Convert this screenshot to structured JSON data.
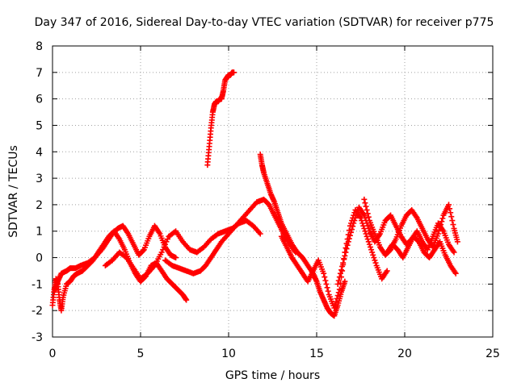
{
  "chart_data": {
    "type": "scatter",
    "title": "Day 347 of 2016, Sidereal Day-to-day VTEC variation (SDTVAR) for receiver p775",
    "xlabel": "GPS time / hours",
    "ylabel": "SDTVAR / TECUs",
    "xlim": [
      0,
      25
    ],
    "ylim": [
      -3,
      8
    ],
    "xticks": [
      0,
      5,
      10,
      15,
      20,
      25
    ],
    "yticks": [
      -3,
      -2,
      -1,
      0,
      1,
      2,
      3,
      4,
      5,
      6,
      7,
      8
    ],
    "grid": true,
    "marker": "+",
    "series": [
      {
        "name": "SDTVAR",
        "color": "#ff0000",
        "tracks": [
          {
            "x": [
              0.0,
              0.1,
              0.2,
              0.3,
              0.4,
              0.5,
              0.6,
              0.8,
              1.0,
              1.2,
              1.4,
              1.7,
              2.0,
              2.3,
              2.6,
              2.9,
              3.2,
              3.5,
              3.8,
              4.1,
              4.4,
              4.7,
              5.0,
              5.3,
              5.6,
              5.9,
              6.2,
              6.5,
              6.8,
              7.1,
              7.4,
              7.6
            ],
            "y": [
              -1.8,
              -1.2,
              -0.8,
              -1.0,
              -1.6,
              -2.0,
              -1.5,
              -1.0,
              -0.9,
              -0.7,
              -0.6,
              -0.5,
              -0.3,
              -0.1,
              0.2,
              0.5,
              0.8,
              1.0,
              0.7,
              0.3,
              -0.2,
              -0.6,
              -0.9,
              -0.7,
              -0.3,
              -0.2,
              -0.5,
              -0.8,
              -1.0,
              -1.2,
              -1.4,
              -1.6
            ]
          },
          {
            "x": [
              0.1,
              0.3,
              0.5,
              0.8,
              1.0,
              1.3,
              1.6,
              2.0,
              2.4,
              2.8,
              3.1,
              3.4,
              3.7,
              4.0,
              4.3,
              4.6,
              4.9,
              5.2,
              5.5,
              5.8,
              6.1,
              6.4,
              6.7,
              7.0
            ],
            "y": [
              -1.3,
              -0.9,
              -0.6,
              -0.5,
              -0.4,
              -0.4,
              -0.3,
              -0.2,
              0.0,
              0.3,
              0.6,
              0.9,
              1.1,
              1.2,
              0.9,
              0.5,
              0.1,
              0.3,
              0.8,
              1.2,
              0.9,
              0.4,
              0.1,
              0.0
            ]
          },
          {
            "x": [
              3.0,
              3.4,
              3.8,
              4.2,
              4.6,
              5.0,
              5.4,
              5.8,
              6.2,
              6.6,
              7.0,
              7.4,
              7.8,
              8.2,
              8.6,
              9.0,
              9.4,
              9.8,
              10.2,
              10.6,
              11.0,
              11.4,
              11.8
            ],
            "y": [
              -0.3,
              -0.1,
              0.2,
              0.0,
              -0.4,
              -0.8,
              -0.6,
              -0.3,
              0.2,
              0.8,
              1.0,
              0.6,
              0.3,
              0.2,
              0.4,
              0.7,
              0.9,
              1.0,
              1.1,
              1.3,
              1.4,
              1.2,
              0.9
            ]
          },
          {
            "x": [
              6.4,
              6.8,
              7.2,
              7.6,
              8.0,
              8.4,
              8.7,
              9.0,
              9.3,
              9.6,
              10.0,
              10.4,
              10.8,
              11.2,
              11.6,
              12.0,
              12.3,
              12.6,
              12.9,
              13.2,
              13.5,
              13.8
            ],
            "y": [
              -0.1,
              -0.3,
              -0.4,
              -0.5,
              -0.6,
              -0.5,
              -0.3,
              0.0,
              0.3,
              0.6,
              0.9,
              1.2,
              1.5,
              1.8,
              2.1,
              2.2,
              2.0,
              1.6,
              1.2,
              0.8,
              0.5,
              0.2
            ]
          },
          {
            "x": [
              8.8,
              8.9,
              9.0,
              9.1,
              9.2,
              9.3,
              9.4,
              9.5,
              9.6,
              9.7,
              9.8,
              9.9,
              10.0,
              10.1,
              10.2,
              10.3
            ],
            "y": [
              3.5,
              4.2,
              4.9,
              5.5,
              5.8,
              5.9,
              5.9,
              6.0,
              6.0,
              6.3,
              6.7,
              6.8,
              6.9,
              6.9,
              7.0,
              7.0
            ]
          },
          {
            "x": [
              11.8,
              11.9,
              12.0,
              12.2,
              12.4,
              12.6,
              12.8,
              13.0,
              13.3,
              13.6,
              13.9,
              14.2,
              14.5,
              14.8,
              15.0,
              15.2,
              15.4,
              15.6,
              15.8,
              16.0,
              16.2,
              16.4,
              16.6
            ],
            "y": [
              3.9,
              3.5,
              3.2,
              2.8,
              2.4,
              2.1,
              1.7,
              1.3,
              0.9,
              0.5,
              0.2,
              0.0,
              -0.3,
              -0.6,
              -0.9,
              -1.3,
              -1.6,
              -1.9,
              -2.1,
              -2.2,
              -1.8,
              -1.3,
              -0.9
            ]
          },
          {
            "x": [
              13.0,
              13.3,
              13.6,
              13.9,
              14.2,
              14.5,
              14.8,
              15.1,
              15.4,
              15.7,
              16.0,
              16.3,
              16.6,
              16.9,
              17.2,
              17.5,
              17.8,
              18.1,
              18.4,
              18.7,
              19.0
            ],
            "y": [
              0.8,
              0.4,
              0.0,
              -0.3,
              -0.6,
              -0.9,
              -0.5,
              -0.1,
              -0.6,
              -1.4,
              -1.9,
              -1.2,
              0.2,
              1.2,
              1.8,
              1.5,
              0.9,
              0.3,
              -0.3,
              -0.8,
              -0.5
            ]
          },
          {
            "x": [
              16.2,
              16.5,
              16.8,
              17.1,
              17.4,
              17.7,
              18.0,
              18.3,
              18.6,
              18.9,
              19.2,
              19.5,
              19.8,
              20.1,
              20.4,
              20.7,
              21.0,
              21.3,
              21.6,
              21.9,
              22.2,
              22.5,
              22.8
            ],
            "y": [
              -1.0,
              -0.2,
              0.6,
              1.3,
              1.9,
              1.6,
              1.0,
              0.6,
              0.9,
              1.4,
              1.6,
              1.2,
              0.8,
              0.5,
              0.7,
              1.0,
              0.6,
              0.3,
              0.8,
              1.3,
              1.0,
              0.5,
              0.2
            ]
          },
          {
            "x": [
              17.7,
              18.0,
              18.3,
              18.6,
              18.9,
              19.2,
              19.5,
              19.8,
              20.1,
              20.4,
              20.7,
              21.0,
              21.3,
              21.6,
              21.9,
              22.2,
              22.5,
              22.8,
              23.0
            ],
            "y": [
              2.2,
              1.4,
              0.9,
              0.4,
              0.1,
              0.3,
              0.7,
              1.2,
              1.6,
              1.8,
              1.5,
              1.1,
              0.7,
              0.4,
              0.9,
              1.6,
              2.0,
              1.1,
              0.6
            ]
          },
          {
            "x": [
              19.0,
              19.3,
              19.6,
              19.9,
              20.2,
              20.5,
              20.8,
              21.1,
              21.4,
              21.7,
              22.0,
              22.3,
              22.6,
              22.9
            ],
            "y": [
              0.2,
              0.5,
              0.3,
              0.0,
              0.4,
              0.8,
              0.6,
              0.2,
              0.0,
              0.3,
              0.6,
              0.1,
              -0.3,
              -0.6
            ]
          }
        ]
      }
    ]
  }
}
